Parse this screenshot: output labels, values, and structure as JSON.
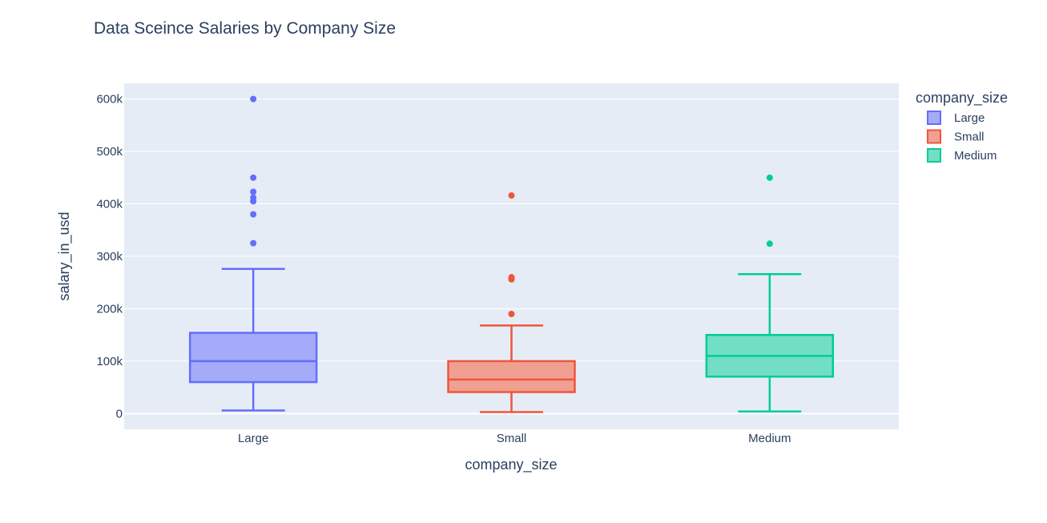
{
  "chart_data": {
    "type": "box",
    "title": "Data Sceince Salaries by Company Size",
    "xlabel": "company_size",
    "ylabel": "salary_in_usd",
    "ylim": [
      -30000,
      630000
    ],
    "yticks": [
      {
        "value": 0,
        "label": "0"
      },
      {
        "value": 100000,
        "label": "100k"
      },
      {
        "value": 200000,
        "label": "200k"
      },
      {
        "value": 300000,
        "label": "300k"
      },
      {
        "value": 400000,
        "label": "400k"
      },
      {
        "value": 500000,
        "label": "500k"
      },
      {
        "value": 600000,
        "label": "600k"
      }
    ],
    "grid": true,
    "legend": {
      "title": "company_size",
      "position": "top-right"
    },
    "categories": [
      "Large",
      "Small",
      "Medium"
    ],
    "series": [
      {
        "name": "Large",
        "color": "#636efa",
        "fill": "#a5abf9",
        "min": 5882,
        "q1": 60000,
        "median": 100000,
        "q3": 154000,
        "max": 276000,
        "outliers": [
          600000,
          450000,
          423000,
          412000,
          405000,
          380000,
          325000
        ]
      },
      {
        "name": "Small",
        "color": "#ef553b",
        "fill": "#f0a093",
        "min": 2859,
        "q1": 41000,
        "median": 65000,
        "q3": 100000,
        "max": 168000,
        "outliers": [
          416000,
          260000,
          256000,
          190000
        ]
      },
      {
        "name": "Medium",
        "color": "#00cc96",
        "fill": "#72dfc4",
        "min": 4000,
        "q1": 70500,
        "median": 110000,
        "q3": 150000,
        "max": 266000,
        "outliers": [
          450000,
          324000
        ]
      }
    ]
  }
}
